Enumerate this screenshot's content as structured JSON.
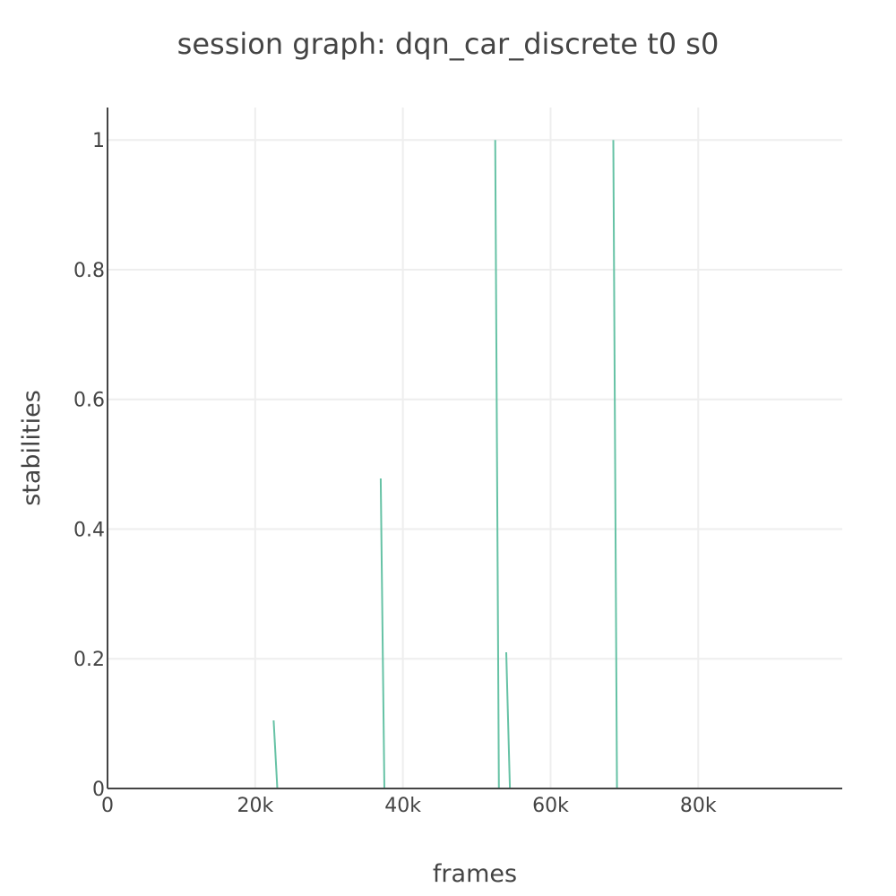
{
  "chart_data": {
    "type": "line",
    "title": "session graph: dqn_car_discrete t0 s0",
    "xlabel": "frames",
    "ylabel": "stabilities",
    "xlim": [
      0,
      99500
    ],
    "ylim": [
      0,
      1.05
    ],
    "grid": true,
    "x_ticks": [
      {
        "value": 0,
        "label": "0"
      },
      {
        "value": 20000,
        "label": "20k"
      },
      {
        "value": 40000,
        "label": "40k"
      },
      {
        "value": 60000,
        "label": "60k"
      },
      {
        "value": 80000,
        "label": "80k"
      }
    ],
    "y_ticks": [
      {
        "value": 0,
        "label": "0"
      },
      {
        "value": 0.2,
        "label": "0.2"
      },
      {
        "value": 0.4,
        "label": "0.4"
      },
      {
        "value": 0.6,
        "label": "0.6"
      },
      {
        "value": 0.8,
        "label": "0.8"
      },
      {
        "value": 1,
        "label": "1"
      }
    ],
    "series": [
      {
        "color": "#66c2a5",
        "segments": [
          [
            [
              22500,
              0.105
            ],
            [
              23000,
              0
            ]
          ],
          [
            [
              37000,
              0.478
            ],
            [
              37500,
              0
            ]
          ],
          [
            [
              52500,
              1.0
            ],
            [
              53000,
              0
            ]
          ],
          [
            [
              54000,
              0.21
            ],
            [
              54500,
              0
            ]
          ],
          [
            [
              68500,
              1.0
            ],
            [
              69000,
              0
            ]
          ]
        ]
      }
    ]
  }
}
